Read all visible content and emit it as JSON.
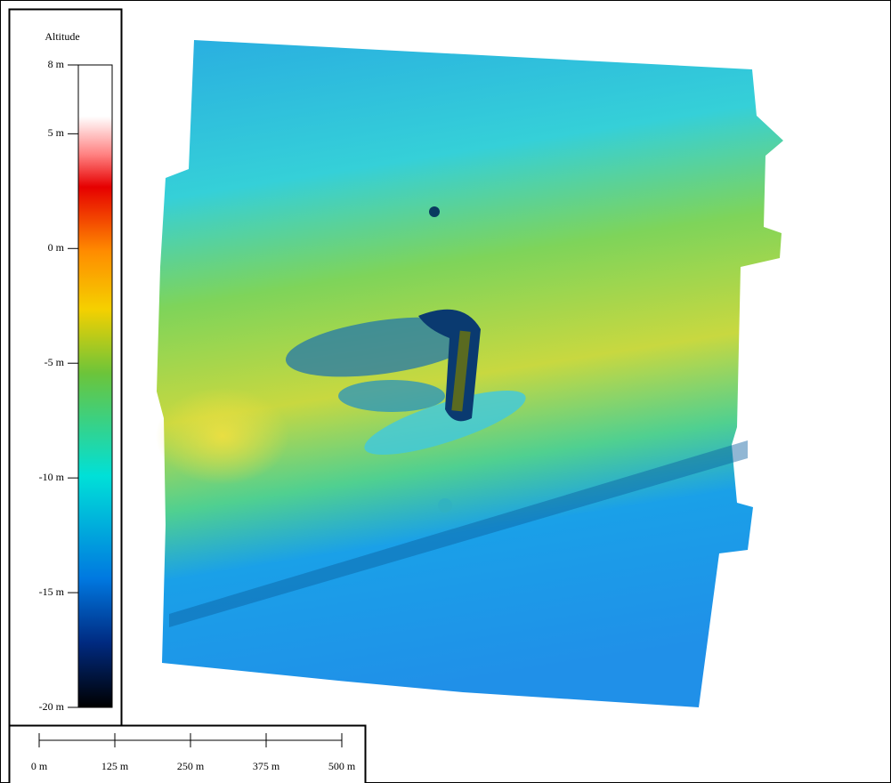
{
  "legend": {
    "title": "Altitude",
    "range": [
      -20,
      8
    ],
    "ticks": [
      {
        "value": 8,
        "label": "8 m"
      },
      {
        "value": 5,
        "label": "5 m"
      },
      {
        "value": 0,
        "label": "0 m"
      },
      {
        "value": -5,
        "label": "-5 m"
      },
      {
        "value": -10,
        "label": "-10 m"
      },
      {
        "value": -15,
        "label": "-15 m"
      },
      {
        "value": -20,
        "label": "-20 m"
      }
    ]
  },
  "scale_bar": {
    "range": [
      0,
      500
    ],
    "ticks": [
      {
        "value": 0,
        "label": "0 m"
      },
      {
        "value": 125,
        "label": "125 m"
      },
      {
        "value": 250,
        "label": "250 m"
      },
      {
        "value": 375,
        "label": "375 m"
      },
      {
        "value": 500,
        "label": "500 m"
      }
    ]
  }
}
